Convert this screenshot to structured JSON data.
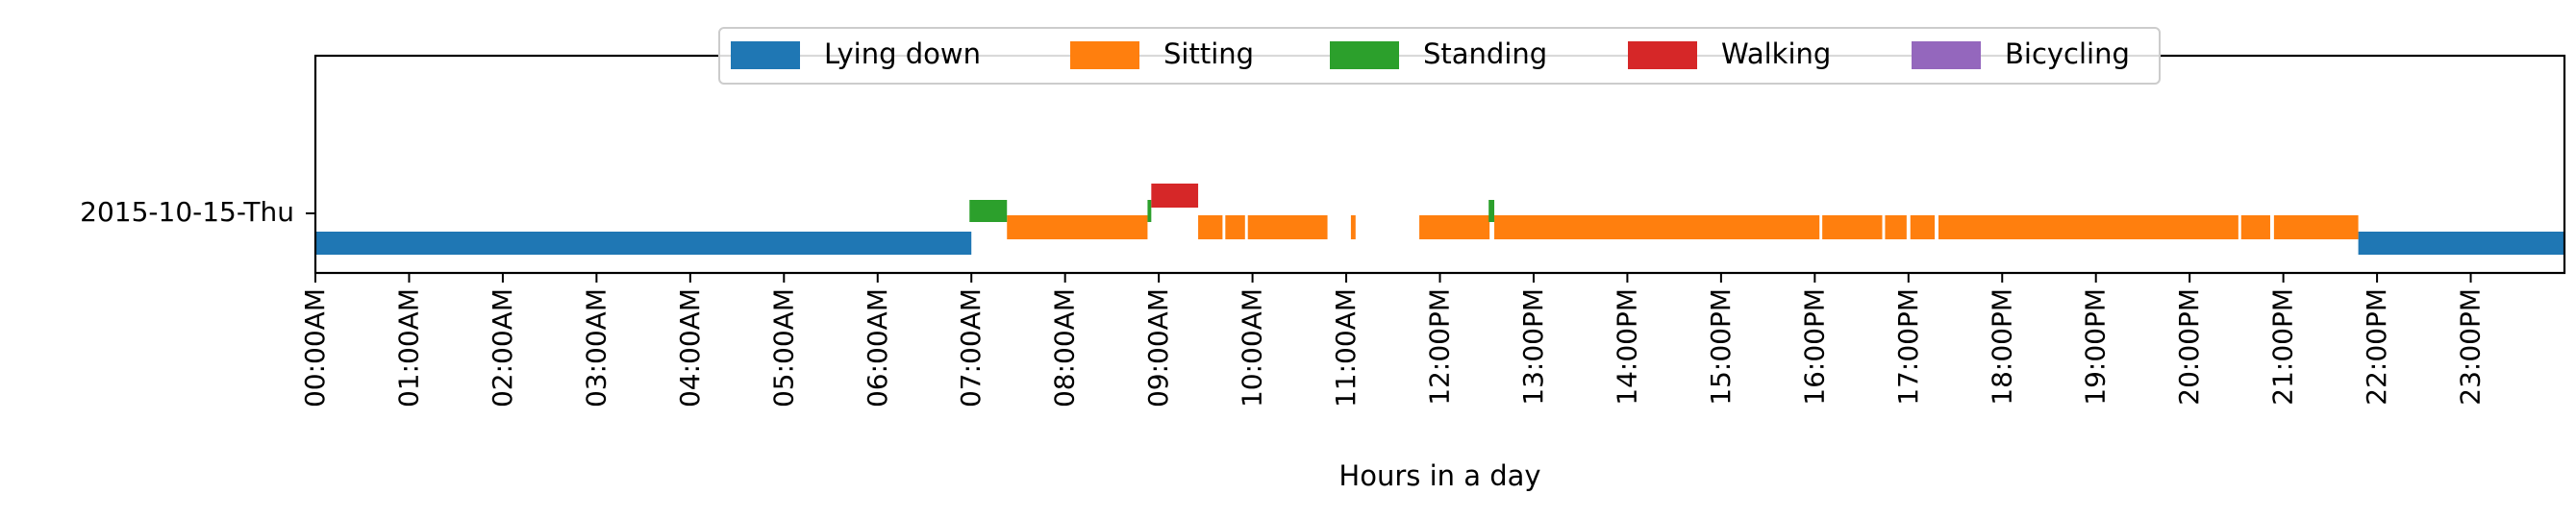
{
  "chart_data": {
    "type": "bar",
    "xlabel": "Hours in a day",
    "ylabel": "",
    "title": "",
    "xlim": [
      0,
      24
    ],
    "x_ticks": [
      {
        "value": 0,
        "label": "00:00AM"
      },
      {
        "value": 1,
        "label": "01:00AM"
      },
      {
        "value": 2,
        "label": "02:00AM"
      },
      {
        "value": 3,
        "label": "03:00AM"
      },
      {
        "value": 4,
        "label": "04:00AM"
      },
      {
        "value": 5,
        "label": "05:00AM"
      },
      {
        "value": 6,
        "label": "06:00AM"
      },
      {
        "value": 7,
        "label": "07:00AM"
      },
      {
        "value": 8,
        "label": "08:00AM"
      },
      {
        "value": 9,
        "label": "09:00AM"
      },
      {
        "value": 10,
        "label": "10:00AM"
      },
      {
        "value": 11,
        "label": "11:00AM"
      },
      {
        "value": 12,
        "label": "12:00PM"
      },
      {
        "value": 13,
        "label": "13:00PM"
      },
      {
        "value": 14,
        "label": "14:00PM"
      },
      {
        "value": 15,
        "label": "15:00PM"
      },
      {
        "value": 16,
        "label": "16:00PM"
      },
      {
        "value": 17,
        "label": "17:00PM"
      },
      {
        "value": 18,
        "label": "18:00PM"
      },
      {
        "value": 19,
        "label": "19:00PM"
      },
      {
        "value": 20,
        "label": "20:00PM"
      },
      {
        "value": 21,
        "label": "21:00PM"
      },
      {
        "value": 22,
        "label": "22:00PM"
      },
      {
        "value": 23,
        "label": "23:00PM"
      }
    ],
    "day_label": "2015-10-15-Thu",
    "legend_position": "top-center",
    "series": [
      {
        "name": "Lying down",
        "color": "#1f77b4",
        "level": 0,
        "intervals": [
          [
            0.0,
            7.0
          ],
          [
            21.8,
            24.0
          ]
        ]
      },
      {
        "name": "Sitting",
        "color": "#ff7f0e",
        "level": 1,
        "intervals": [
          [
            7.38,
            8.88
          ],
          [
            9.42,
            9.68
          ],
          [
            9.71,
            9.92
          ],
          [
            9.95,
            10.8
          ],
          [
            11.05,
            11.1
          ],
          [
            11.78,
            12.53
          ],
          [
            12.58,
            16.05
          ],
          [
            16.08,
            16.72
          ],
          [
            16.75,
            16.98
          ],
          [
            17.02,
            17.28
          ],
          [
            17.32,
            20.52
          ],
          [
            20.55,
            20.86
          ],
          [
            20.9,
            21.8
          ]
        ]
      },
      {
        "name": "Standing",
        "color": "#2ca02c",
        "level": 2,
        "intervals": [
          [
            6.98,
            7.38
          ],
          [
            8.88,
            8.92
          ],
          [
            12.52,
            12.58
          ]
        ]
      },
      {
        "name": "Walking",
        "color": "#d62728",
        "level": 3,
        "intervals": [
          [
            8.92,
            9.42
          ]
        ]
      },
      {
        "name": "Bicycling",
        "color": "#9467bd",
        "level": 4,
        "intervals": []
      }
    ]
  }
}
